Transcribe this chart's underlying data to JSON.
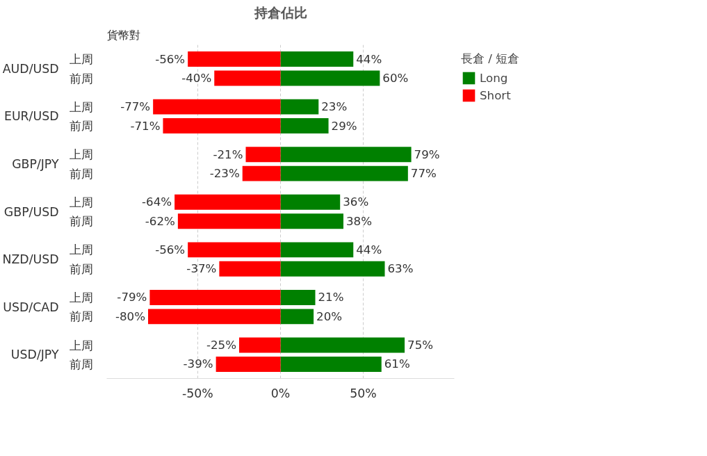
{
  "chart_data": {
    "type": "bar",
    "orientation": "horizontal",
    "title": "持倉佔比",
    "ylabel": "貨幣對",
    "legend_title": "長倉 / 短倉",
    "categories": [
      "上周",
      "前周",
      "上周",
      "前周",
      "上周",
      "前周",
      "上周",
      "前周",
      "上周",
      "前周",
      "上周",
      "前周",
      "上周",
      "前周"
    ],
    "annotations": [
      "AUD/USD",
      "EUR/USD",
      "GBP/JPY",
      "GBP/USD",
      "NZD/USD",
      "USD/CAD",
      "USD/JPY"
    ],
    "series": [
      {
        "name": "Long",
        "color": "#008000",
        "values": [
          44,
          60,
          23,
          29,
          79,
          77,
          36,
          38,
          44,
          63,
          21,
          20,
          75,
          61
        ],
        "value_labels": [
          "44%",
          "60%",
          "23%",
          "29%",
          "79%",
          "77%",
          "36%",
          "38%",
          "44%",
          "63%",
          "21%",
          "20%",
          "75%",
          "61%"
        ]
      },
      {
        "name": "Short",
        "color": "#ff0000",
        "values": [
          -56,
          -40,
          -77,
          -71,
          -21,
          -23,
          -64,
          -62,
          -56,
          -37,
          -79,
          -80,
          -25,
          -39
        ],
        "value_labels": [
          "-56%",
          "-40%",
          "-77%",
          "-71%",
          "-21%",
          "-23%",
          "-64%",
          "-62%",
          "-56%",
          "-37%",
          "-79%",
          "-80%",
          "-25%",
          "-39%"
        ]
      }
    ],
    "xlim": [
      -105,
      105
    ],
    "xticks": [
      {
        "value": -50,
        "label": "-50%"
      },
      {
        "value": 0,
        "label": "0%"
      },
      {
        "value": 50,
        "label": "50%"
      }
    ],
    "grid": "x",
    "legend": "right",
    "stacked": true
  }
}
